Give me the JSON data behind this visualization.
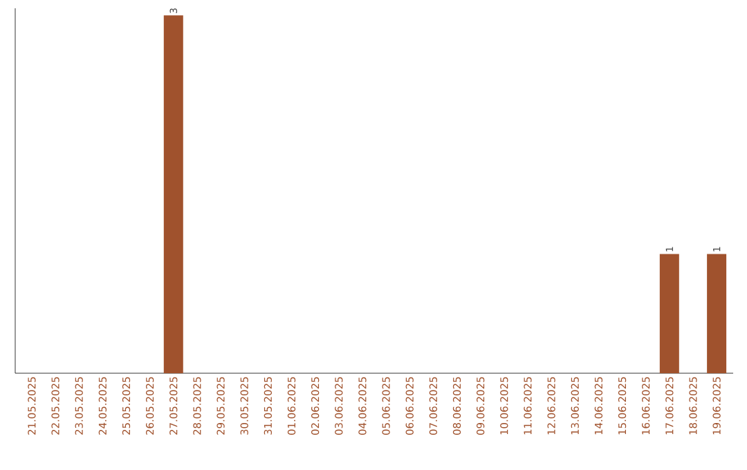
{
  "chart_data": {
    "type": "bar",
    "categories": [
      "21.05.2025",
      "22.05.2025",
      "23.05.2025",
      "24.05.2025",
      "25.05.2025",
      "26.05.2025",
      "27.05.2025",
      "28.05.2025",
      "29.05.2025",
      "30.05.2025",
      "31.05.2025",
      "01.06.2025",
      "02.06.2025",
      "03.06.2025",
      "04.06.2025",
      "05.06.2025",
      "06.06.2025",
      "07.06.2025",
      "08.06.2025",
      "09.06.2025",
      "10.06.2025",
      "11.06.2025",
      "12.06.2025",
      "13.06.2025",
      "14.06.2025",
      "15.06.2025",
      "16.06.2025",
      "17.06.2025",
      "18.06.2025",
      "19.06.2025"
    ],
    "values": [
      0,
      0,
      0,
      0,
      0,
      0,
      3,
      0,
      0,
      0,
      0,
      0,
      0,
      0,
      0,
      0,
      0,
      0,
      0,
      0,
      0,
      0,
      0,
      0,
      0,
      0,
      0,
      1,
      0,
      1
    ],
    "value_labels": [
      null,
      null,
      null,
      null,
      null,
      null,
      "3",
      null,
      null,
      null,
      null,
      null,
      null,
      null,
      null,
      null,
      null,
      null,
      null,
      null,
      null,
      null,
      null,
      null,
      null,
      null,
      null,
      "1",
      null,
      "1"
    ],
    "color": "#a0522d"
  }
}
